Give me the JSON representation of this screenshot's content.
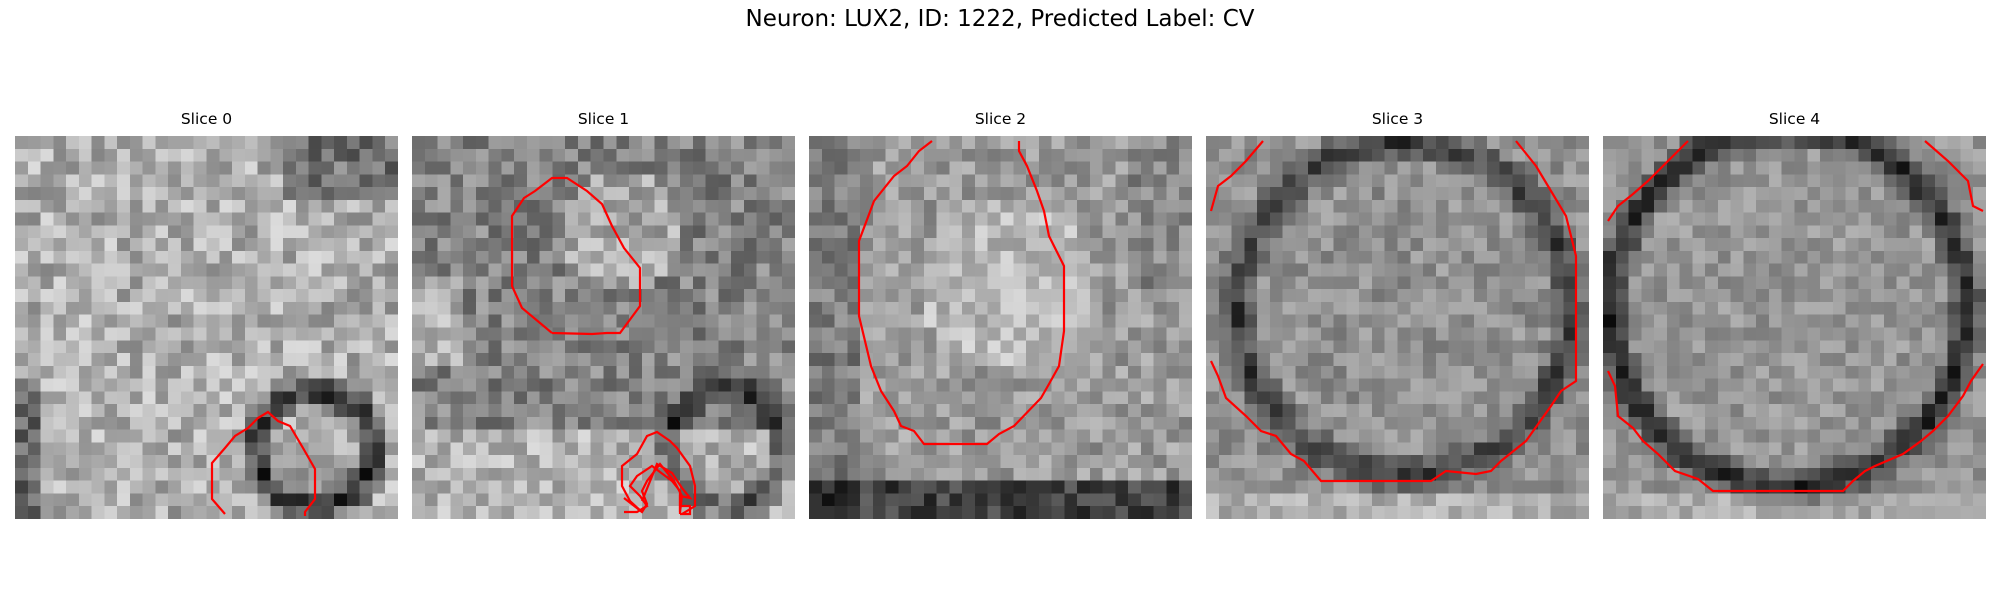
{
  "figure": {
    "title": "Neuron: LUX2, ID: 1222, Predicted Label: CV"
  },
  "panels": [
    {
      "title": "Slice 0"
    },
    {
      "title": "Slice 1"
    },
    {
      "title": "Slice 2"
    },
    {
      "title": "Slice 3"
    },
    {
      "title": "Slice 4"
    }
  ],
  "style": {
    "contour_color": "#ff0000",
    "colormap": "grayscale"
  }
}
